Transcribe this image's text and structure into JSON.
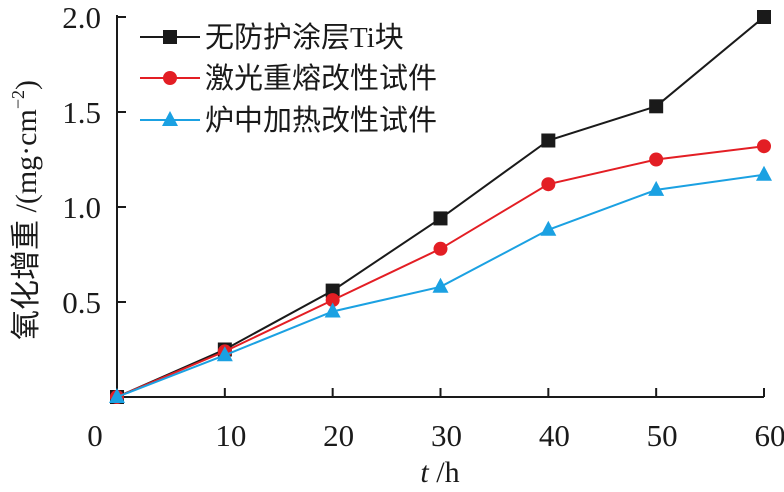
{
  "chart_data": {
    "type": "line",
    "xlabel_var": "t",
    "xlabel_unit": " /h",
    "ylabel_main": "氧化增重 /(mg·cm",
    "ylabel_sup": "−2",
    "ylabel_close": ")",
    "xlim": [
      0,
      60
    ],
    "ylim": [
      0,
      2.0
    ],
    "x_ticks": [
      "0",
      "10",
      "20",
      "30",
      "40",
      "50",
      "60"
    ],
    "y_ticks": [
      "0.5",
      "1.0",
      "1.5",
      "2.0"
    ],
    "grid": false,
    "legend_position": "top-left",
    "x": [
      0,
      10,
      20,
      30,
      40,
      50,
      60
    ],
    "series": [
      {
        "name": "无防护涂层Ti块",
        "marker": "square",
        "color": "#1a1a1a",
        "values": [
          0,
          0.25,
          0.56,
          0.94,
          1.35,
          1.53,
          2.0
        ]
      },
      {
        "name": "激光重熔改性试件",
        "marker": "circle",
        "color": "#e31e24",
        "values": [
          0,
          0.24,
          0.51,
          0.78,
          1.12,
          1.25,
          1.32
        ]
      },
      {
        "name": "炉中加热改性试件",
        "marker": "triangle",
        "color": "#1ba1e2",
        "values": [
          0,
          0.22,
          0.45,
          0.58,
          0.88,
          1.09,
          1.17
        ]
      }
    ]
  }
}
